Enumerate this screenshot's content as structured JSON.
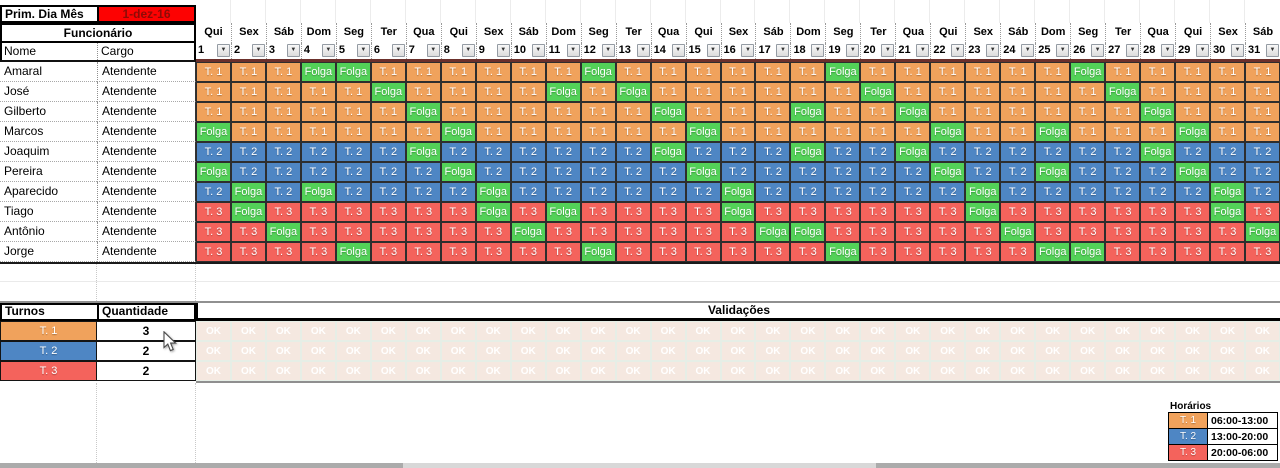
{
  "top_bar": {
    "label": "Prim. Dia Mês",
    "date_value": "1-dez-16"
  },
  "header": {
    "funcionario": "Funcionário",
    "nome": "Nome",
    "cargo": "Cargo"
  },
  "icons": {
    "dropdown": "▼",
    "cursor": "mouse-arrow"
  },
  "colors": {
    "shift_t1": "#F0A25C",
    "shift_t2": "#4E86C4",
    "shift_t3": "#F4635C",
    "folga": "#53D158",
    "date_bg": "#FD0202",
    "date_text": "#8E0B06",
    "ok_bg": "#F5E8E0",
    "ok_text": "#FFFFFF"
  },
  "schedule": {
    "days": [
      {
        "num": "1",
        "name": "Qui"
      },
      {
        "num": "2",
        "name": "Sex"
      },
      {
        "num": "3",
        "name": "Sáb"
      },
      {
        "num": "4",
        "name": "Dom"
      },
      {
        "num": "5",
        "name": "Seg"
      },
      {
        "num": "6",
        "name": "Ter"
      },
      {
        "num": "7",
        "name": "Qua"
      },
      {
        "num": "8",
        "name": "Qui"
      },
      {
        "num": "9",
        "name": "Sex"
      },
      {
        "num": "10",
        "name": "Sáb"
      },
      {
        "num": "11",
        "name": "Dom"
      },
      {
        "num": "12",
        "name": "Seg"
      },
      {
        "num": "13",
        "name": "Ter"
      },
      {
        "num": "14",
        "name": "Qua"
      },
      {
        "num": "15",
        "name": "Qui"
      },
      {
        "num": "16",
        "name": "Sex"
      },
      {
        "num": "17",
        "name": "Sáb"
      },
      {
        "num": "18",
        "name": "Dom"
      },
      {
        "num": "19",
        "name": "Seg"
      },
      {
        "num": "20",
        "name": "Ter"
      },
      {
        "num": "21",
        "name": "Qua"
      },
      {
        "num": "22",
        "name": "Qui"
      },
      {
        "num": "23",
        "name": "Sex"
      },
      {
        "num": "24",
        "name": "Sáb"
      },
      {
        "num": "25",
        "name": "Dom"
      },
      {
        "num": "26",
        "name": "Seg"
      },
      {
        "num": "27",
        "name": "Ter"
      },
      {
        "num": "28",
        "name": "Qua"
      },
      {
        "num": "29",
        "name": "Qui"
      },
      {
        "num": "30",
        "name": "Sex"
      },
      {
        "num": "31",
        "name": "Sáb"
      }
    ],
    "employees": [
      {
        "name": "Amaral",
        "cargo": "Atendente",
        "shifts": [
          "T. 1",
          "T. 1",
          "T. 1",
          "Folga",
          "Folga",
          "T. 1",
          "T. 1",
          "T. 1",
          "T. 1",
          "T. 1",
          "T. 1",
          "Folga",
          "T. 1",
          "T. 1",
          "T. 1",
          "T. 1",
          "T. 1",
          "T. 1",
          "Folga",
          "T. 1",
          "T. 1",
          "T. 1",
          "T. 1",
          "T. 1",
          "T. 1",
          "Folga",
          "T. 1",
          "T. 1",
          "T. 1",
          "T. 1",
          "T. 1"
        ]
      },
      {
        "name": "José",
        "cargo": "Atendente",
        "shifts": [
          "T. 1",
          "T. 1",
          "T. 1",
          "T. 1",
          "T. 1",
          "Folga",
          "T. 1",
          "T. 1",
          "T. 1",
          "T. 1",
          "Folga",
          "T. 1",
          "Folga",
          "T. 1",
          "T. 1",
          "T. 1",
          "T. 1",
          "T. 1",
          "T. 1",
          "Folga",
          "T. 1",
          "T. 1",
          "T. 1",
          "T. 1",
          "T. 1",
          "T. 1",
          "Folga",
          "T. 1",
          "T. 1",
          "T. 1",
          "T. 1"
        ]
      },
      {
        "name": "Gilberto",
        "cargo": "Atendente",
        "shifts": [
          "T. 1",
          "T. 1",
          "T. 1",
          "T. 1",
          "T. 1",
          "T. 1",
          "Folga",
          "T. 1",
          "T. 1",
          "T. 1",
          "T. 1",
          "T. 1",
          "T. 1",
          "Folga",
          "T. 1",
          "T. 1",
          "T. 1",
          "Folga",
          "T. 1",
          "T. 1",
          "Folga",
          "T. 1",
          "T. 1",
          "T. 1",
          "T. 1",
          "T. 1",
          "T. 1",
          "Folga",
          "T. 1",
          "T. 1",
          "T. 1"
        ]
      },
      {
        "name": "Marcos",
        "cargo": "Atendente",
        "shifts": [
          "Folga",
          "T. 1",
          "T. 1",
          "T. 1",
          "T. 1",
          "T. 1",
          "T. 1",
          "Folga",
          "T. 1",
          "T. 1",
          "T. 1",
          "T. 1",
          "T. 1",
          "T. 1",
          "Folga",
          "T. 1",
          "T. 1",
          "T. 1",
          "T. 1",
          "T. 1",
          "T. 1",
          "Folga",
          "T. 1",
          "T. 1",
          "Folga",
          "T. 1",
          "T. 1",
          "T. 1",
          "Folga",
          "T. 1",
          "T. 1"
        ]
      },
      {
        "name": "Joaquim",
        "cargo": "Atendente",
        "shifts": [
          "T. 2",
          "T. 2",
          "T. 2",
          "T. 2",
          "T. 2",
          "T. 2",
          "Folga",
          "T. 2",
          "T. 2",
          "T. 2",
          "T. 2",
          "T. 2",
          "T. 2",
          "Folga",
          "T. 2",
          "T. 2",
          "T. 2",
          "Folga",
          "T. 2",
          "T. 2",
          "Folga",
          "T. 2",
          "T. 2",
          "T. 2",
          "T. 2",
          "T. 2",
          "T. 2",
          "Folga",
          "T. 2",
          "T. 2",
          "T. 2"
        ]
      },
      {
        "name": "Pereira",
        "cargo": "Atendente",
        "shifts": [
          "Folga",
          "T. 2",
          "T. 2",
          "T. 2",
          "T. 2",
          "T. 2",
          "T. 2",
          "Folga",
          "T. 2",
          "T. 2",
          "T. 2",
          "T. 2",
          "T. 2",
          "T. 2",
          "Folga",
          "T. 2",
          "T. 2",
          "T. 2",
          "T. 2",
          "T. 2",
          "T. 2",
          "Folga",
          "T. 2",
          "T. 2",
          "Folga",
          "T. 2",
          "T. 2",
          "T. 2",
          "Folga",
          "T. 2",
          "T. 2"
        ]
      },
      {
        "name": "Aparecido",
        "cargo": "Atendente",
        "shifts": [
          "T. 2",
          "Folga",
          "T. 2",
          "Folga",
          "T. 2",
          "T. 2",
          "T. 2",
          "T. 2",
          "Folga",
          "T. 2",
          "T. 2",
          "T. 2",
          "T. 2",
          "T. 2",
          "T. 2",
          "Folga",
          "T. 2",
          "T. 2",
          "T. 2",
          "T. 2",
          "T. 2",
          "T. 2",
          "Folga",
          "T. 2",
          "T. 2",
          "T. 2",
          "T. 2",
          "T. 2",
          "T. 2",
          "Folga",
          "T. 2"
        ]
      },
      {
        "name": "Tiago",
        "cargo": "Atendente",
        "shifts": [
          "T. 3",
          "Folga",
          "T. 3",
          "T. 3",
          "T. 3",
          "T. 3",
          "T. 3",
          "T. 3",
          "Folga",
          "T. 3",
          "Folga",
          "T. 3",
          "T. 3",
          "T. 3",
          "T. 3",
          "Folga",
          "T. 3",
          "T. 3",
          "T. 3",
          "T. 3",
          "T. 3",
          "T. 3",
          "Folga",
          "T. 3",
          "T. 3",
          "T. 3",
          "T. 3",
          "T. 3",
          "T. 3",
          "Folga",
          "T. 3"
        ]
      },
      {
        "name": "Antônio",
        "cargo": "Atendente",
        "shifts": [
          "T. 3",
          "T. 3",
          "Folga",
          "T. 3",
          "T. 3",
          "T. 3",
          "T. 3",
          "T. 3",
          "T. 3",
          "Folga",
          "T. 3",
          "T. 3",
          "T. 3",
          "T. 3",
          "T. 3",
          "T. 3",
          "Folga",
          "Folga",
          "T. 3",
          "T. 3",
          "T. 3",
          "T. 3",
          "T. 3",
          "Folga",
          "T. 3",
          "T. 3",
          "T. 3",
          "T. 3",
          "T. 3",
          "T. 3",
          "Folga"
        ]
      },
      {
        "name": "Jorge",
        "cargo": "Atendente",
        "shifts": [
          "T. 3",
          "T. 3",
          "T. 3",
          "T. 3",
          "Folga",
          "T. 3",
          "T. 3",
          "T. 3",
          "T. 3",
          "T. 3",
          "T. 3",
          "Folga",
          "T. 3",
          "T. 3",
          "T. 3",
          "T. 3",
          "T. 3",
          "T. 3",
          "Folga",
          "T. 3",
          "T. 3",
          "T. 3",
          "T. 3",
          "T. 3",
          "Folga",
          "Folga",
          "T. 3",
          "T. 3",
          "T. 3",
          "T. 3",
          "T. 3"
        ]
      }
    ]
  },
  "summary": {
    "turnos_header": "Turnos",
    "quantidade_header": "Quantidade",
    "validacoes_header": "Validações",
    "ok_label": "OK",
    "validation_rows": 3,
    "rows": [
      {
        "shift": "T. 1",
        "quantidade": "3"
      },
      {
        "shift": "T. 2",
        "quantidade": "2"
      },
      {
        "shift": "T. 3",
        "quantidade": "2"
      }
    ]
  },
  "legend": {
    "title": "Horários",
    "rows": [
      {
        "shift": "T. 1",
        "hours": "06:00-13:00"
      },
      {
        "shift": "T. 2",
        "hours": "13:00-20:00"
      },
      {
        "shift": "T. 3",
        "hours": "20:00-06:00"
      }
    ]
  }
}
